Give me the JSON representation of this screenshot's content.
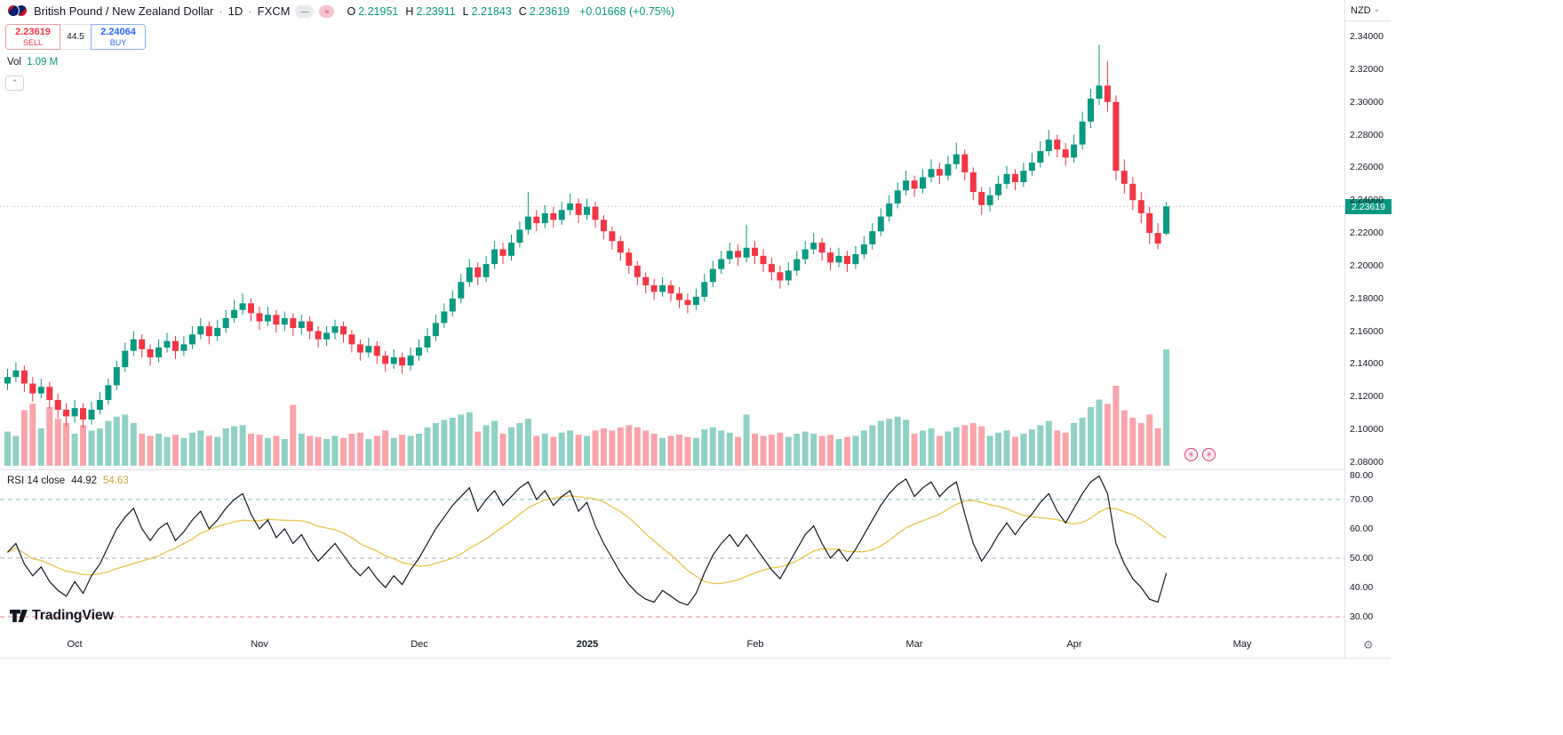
{
  "colors": {
    "up": "#089981",
    "down": "#f23645",
    "rsi": "#131722",
    "rsi_ma": "#e7c54a",
    "buy": "#2962ff",
    "sell": "#f23645",
    "last_price_badge_bg": "#089981"
  },
  "icons": {
    "chevron_up": "⌃",
    "chevron_down": "⌄",
    "gear": "⚙",
    "marker": "✳"
  },
  "legend": {
    "symbol_title": "British Pound / New Zealand Dollar",
    "separator": "·",
    "interval": "1D",
    "exchange": "FXCM",
    "badges": {
      "dash": "—",
      "wave": "≈"
    },
    "ohlc": {
      "o_label": "O",
      "o": "2.21951",
      "h_label": "H",
      "h": "2.23911",
      "l_label": "L",
      "l": "2.21843",
      "c_label": "C",
      "c": "2.23619",
      "change": "+0.01668 (+0.75%)"
    },
    "volume_label": "Vol",
    "volume_value": "1.09 M"
  },
  "order_panel": {
    "sell_price": "2.23619",
    "sell_label": "SELL",
    "spread": "44.5",
    "buy_price": "2.24064",
    "buy_label": "BUY"
  },
  "rsi_legend": {
    "title": "RSI 14 close",
    "value": "44.92",
    "ma_value": "54.63"
  },
  "price_axis": {
    "currency": "NZD",
    "last_price": "2.23619",
    "ticks": [
      "2.34000",
      "2.32000",
      "2.30000",
      "2.28000",
      "2.26000",
      "2.24000",
      "2.22000",
      "2.20000",
      "2.18000",
      "2.16000",
      "2.14000",
      "2.12000",
      "2.10000",
      "2.08000"
    ]
  },
  "rsi_axis": {
    "ticks": [
      "80.00",
      "70.00",
      "60.00",
      "50.00",
      "40.00",
      "30.00"
    ]
  },
  "time_axis": {
    "labels": [
      {
        "text": "Oct",
        "i": 8
      },
      {
        "text": "Nov",
        "i": 30
      },
      {
        "text": "Dec",
        "i": 49
      },
      {
        "text": "2025",
        "i": 69,
        "bold": true
      },
      {
        "text": "Feb",
        "i": 89
      },
      {
        "text": "Mar",
        "i": 108
      },
      {
        "text": "Apr",
        "i": 127
      },
      {
        "text": "May",
        "i": 147
      }
    ]
  },
  "branding": {
    "logo_text": "TradingView"
  },
  "chart_data": {
    "type": "candlestick",
    "title": "British Pound / New Zealand Dollar, 1D, FXCM",
    "price_axis_range": [
      2.08,
      2.345
    ],
    "rsi_axis_range": [
      25,
      85
    ],
    "last_price": 2.23619,
    "volume_unit": "millions",
    "indicators": [
      {
        "name": "RSI",
        "length": 14,
        "source": "close",
        "value": 44.92,
        "ma_value": 54.63
      }
    ],
    "rsi_levels": [
      {
        "value": 70,
        "color": "#26a69a"
      },
      {
        "value": 50,
        "color": "#787b86"
      },
      {
        "value": 30,
        "color": "#f23645"
      }
    ],
    "candle_format": [
      "open",
      "high",
      "low",
      "close",
      "volume_millions",
      "rsi_14"
    ],
    "candles": [
      [
        2.128,
        2.137,
        2.124,
        2.132,
        0.32,
        52
      ],
      [
        2.132,
        2.141,
        2.129,
        2.136,
        0.28,
        55
      ],
      [
        2.136,
        2.139,
        2.123,
        2.128,
        0.52,
        48
      ],
      [
        2.128,
        2.132,
        2.117,
        2.122,
        0.58,
        44
      ],
      [
        2.122,
        2.131,
        2.119,
        2.126,
        0.35,
        47
      ],
      [
        2.126,
        2.129,
        2.113,
        2.118,
        0.55,
        42
      ],
      [
        2.118,
        2.122,
        2.107,
        2.112,
        0.44,
        39
      ],
      [
        2.112,
        2.116,
        2.102,
        2.108,
        0.4,
        37
      ],
      [
        2.108,
        2.118,
        2.104,
        2.113,
        0.3,
        42
      ],
      [
        2.113,
        2.116,
        2.101,
        2.106,
        0.38,
        38
      ],
      [
        2.106,
        2.117,
        2.103,
        2.112,
        0.33,
        44
      ],
      [
        2.112,
        2.123,
        2.109,
        2.118,
        0.35,
        48
      ],
      [
        2.118,
        2.131,
        2.115,
        2.127,
        0.42,
        54
      ],
      [
        2.127,
        2.142,
        2.124,
        2.138,
        0.46,
        60
      ],
      [
        2.138,
        2.153,
        2.135,
        2.148,
        0.48,
        64
      ],
      [
        2.148,
        2.16,
        2.145,
        2.155,
        0.4,
        67
      ],
      [
        2.155,
        2.158,
        2.144,
        2.149,
        0.3,
        60
      ],
      [
        2.149,
        2.152,
        2.139,
        2.144,
        0.28,
        56
      ],
      [
        2.144,
        2.155,
        2.141,
        2.15,
        0.3,
        60
      ],
      [
        2.15,
        2.159,
        2.147,
        2.154,
        0.27,
        62
      ],
      [
        2.154,
        2.157,
        2.143,
        2.148,
        0.29,
        56
      ],
      [
        2.148,
        2.157,
        2.145,
        2.152,
        0.26,
        59
      ],
      [
        2.152,
        2.163,
        2.149,
        2.158,
        0.31,
        63
      ],
      [
        2.158,
        2.168,
        2.155,
        2.163,
        0.33,
        66
      ],
      [
        2.163,
        2.166,
        2.152,
        2.157,
        0.28,
        60
      ],
      [
        2.157,
        2.167,
        2.154,
        2.162,
        0.27,
        63
      ],
      [
        2.162,
        2.173,
        2.159,
        2.168,
        0.35,
        67
      ],
      [
        2.168,
        2.179,
        2.165,
        2.173,
        0.37,
        70
      ],
      [
        2.173,
        2.183,
        2.17,
        2.177,
        0.38,
        72
      ],
      [
        2.177,
        2.18,
        2.166,
        2.171,
        0.3,
        65
      ],
      [
        2.171,
        2.175,
        2.161,
        2.166,
        0.29,
        60
      ],
      [
        2.166,
        2.175,
        2.163,
        2.17,
        0.26,
        63
      ],
      [
        2.17,
        2.173,
        2.159,
        2.164,
        0.28,
        57
      ],
      [
        2.164,
        2.172,
        2.16,
        2.168,
        0.25,
        60
      ],
      [
        2.168,
        2.171,
        2.157,
        2.162,
        0.57,
        55
      ],
      [
        2.162,
        2.17,
        2.158,
        2.166,
        0.3,
        58
      ],
      [
        2.166,
        2.169,
        2.155,
        2.16,
        0.28,
        53
      ],
      [
        2.16,
        2.163,
        2.15,
        2.155,
        0.27,
        49
      ],
      [
        2.155,
        2.163,
        2.151,
        2.159,
        0.25,
        52
      ],
      [
        2.159,
        2.167,
        2.155,
        2.163,
        0.28,
        55
      ],
      [
        2.163,
        2.166,
        2.153,
        2.158,
        0.26,
        51
      ],
      [
        2.158,
        2.161,
        2.147,
        2.152,
        0.3,
        47
      ],
      [
        2.152,
        2.155,
        2.142,
        2.147,
        0.31,
        44
      ],
      [
        2.147,
        2.156,
        2.144,
        2.151,
        0.25,
        47
      ],
      [
        2.151,
        2.154,
        2.14,
        2.145,
        0.28,
        43
      ],
      [
        2.145,
        2.148,
        2.135,
        2.14,
        0.33,
        40
      ],
      [
        2.14,
        2.149,
        2.137,
        2.144,
        0.26,
        44
      ],
      [
        2.144,
        2.147,
        2.134,
        2.139,
        0.29,
        41
      ],
      [
        2.139,
        2.15,
        2.136,
        2.145,
        0.28,
        46
      ],
      [
        2.145,
        2.155,
        2.142,
        2.15,
        0.3,
        50
      ],
      [
        2.15,
        2.162,
        2.147,
        2.157,
        0.36,
        55
      ],
      [
        2.157,
        2.17,
        2.154,
        2.165,
        0.4,
        60
      ],
      [
        2.165,
        2.177,
        2.162,
        2.172,
        0.43,
        64
      ],
      [
        2.172,
        2.185,
        2.169,
        2.18,
        0.45,
        68
      ],
      [
        2.18,
        2.195,
        2.177,
        2.19,
        0.48,
        71
      ],
      [
        2.19,
        2.204,
        2.187,
        2.199,
        0.5,
        74
      ],
      [
        2.199,
        2.202,
        2.188,
        2.193,
        0.32,
        66
      ],
      [
        2.193,
        2.206,
        2.19,
        2.201,
        0.38,
        70
      ],
      [
        2.201,
        2.215,
        2.198,
        2.21,
        0.42,
        73
      ],
      [
        2.21,
        2.214,
        2.201,
        2.206,
        0.3,
        68
      ],
      [
        2.206,
        2.219,
        2.203,
        2.214,
        0.36,
        71
      ],
      [
        2.214,
        2.227,
        2.211,
        2.222,
        0.4,
        74
      ],
      [
        2.222,
        2.245,
        2.219,
        2.23,
        0.44,
        76
      ],
      [
        2.23,
        2.234,
        2.221,
        2.226,
        0.28,
        70
      ],
      [
        2.226,
        2.237,
        2.223,
        2.232,
        0.3,
        73
      ],
      [
        2.232,
        2.236,
        2.223,
        2.228,
        0.27,
        68
      ],
      [
        2.228,
        2.239,
        2.225,
        2.234,
        0.31,
        71
      ],
      [
        2.234,
        2.244,
        2.231,
        2.238,
        0.33,
        73
      ],
      [
        2.238,
        2.241,
        2.226,
        2.231,
        0.29,
        66
      ],
      [
        2.231,
        2.241,
        2.228,
        2.236,
        0.28,
        69
      ],
      [
        2.236,
        2.239,
        2.223,
        2.228,
        0.33,
        61
      ],
      [
        2.228,
        2.231,
        2.216,
        2.221,
        0.35,
        55
      ],
      [
        2.221,
        2.224,
        2.21,
        2.215,
        0.33,
        50
      ],
      [
        2.215,
        2.218,
        2.203,
        2.208,
        0.36,
        45
      ],
      [
        2.208,
        2.211,
        2.195,
        2.2,
        0.38,
        41
      ],
      [
        2.2,
        2.203,
        2.188,
        2.193,
        0.36,
        38
      ],
      [
        2.193,
        2.196,
        2.183,
        2.188,
        0.33,
        36
      ],
      [
        2.188,
        2.192,
        2.179,
        2.184,
        0.3,
        35
      ],
      [
        2.184,
        2.193,
        2.181,
        2.188,
        0.26,
        39
      ],
      [
        2.188,
        2.191,
        2.178,
        2.183,
        0.28,
        37
      ],
      [
        2.183,
        2.187,
        2.174,
        2.179,
        0.29,
        35
      ],
      [
        2.179,
        2.183,
        2.171,
        2.176,
        0.27,
        34
      ],
      [
        2.176,
        2.186,
        2.173,
        2.181,
        0.26,
        38
      ],
      [
        2.181,
        2.195,
        2.178,
        2.19,
        0.34,
        45
      ],
      [
        2.19,
        2.203,
        2.187,
        2.198,
        0.36,
        51
      ],
      [
        2.198,
        2.209,
        2.195,
        2.204,
        0.33,
        55
      ],
      [
        2.204,
        2.214,
        2.201,
        2.209,
        0.31,
        58
      ],
      [
        2.209,
        2.213,
        2.2,
        2.205,
        0.27,
        54
      ],
      [
        2.205,
        2.225,
        2.202,
        2.211,
        0.48,
        58
      ],
      [
        2.211,
        2.215,
        2.201,
        2.206,
        0.3,
        54
      ],
      [
        2.206,
        2.21,
        2.196,
        2.201,
        0.28,
        50
      ],
      [
        2.201,
        2.205,
        2.191,
        2.196,
        0.29,
        46
      ],
      [
        2.196,
        2.2,
        2.186,
        2.191,
        0.31,
        43
      ],
      [
        2.191,
        2.202,
        2.188,
        2.197,
        0.27,
        48
      ],
      [
        2.197,
        2.209,
        2.194,
        2.204,
        0.3,
        53
      ],
      [
        2.204,
        2.215,
        2.201,
        2.21,
        0.32,
        58
      ],
      [
        2.21,
        2.22,
        2.207,
        2.214,
        0.3,
        61
      ],
      [
        2.214,
        2.217,
        2.203,
        2.208,
        0.28,
        55
      ],
      [
        2.208,
        2.211,
        2.197,
        2.202,
        0.29,
        50
      ],
      [
        2.202,
        2.211,
        2.199,
        2.206,
        0.25,
        53
      ],
      [
        2.206,
        2.209,
        2.196,
        2.201,
        0.27,
        49
      ],
      [
        2.201,
        2.212,
        2.198,
        2.207,
        0.28,
        53
      ],
      [
        2.207,
        2.218,
        2.204,
        2.213,
        0.33,
        58
      ],
      [
        2.213,
        2.226,
        2.21,
        2.221,
        0.38,
        63
      ],
      [
        2.221,
        2.235,
        2.218,
        2.23,
        0.42,
        68
      ],
      [
        2.23,
        2.243,
        2.227,
        2.238,
        0.44,
        72
      ],
      [
        2.238,
        2.251,
        2.235,
        2.246,
        0.46,
        75
      ],
      [
        2.246,
        2.258,
        2.243,
        2.252,
        0.43,
        77
      ],
      [
        2.252,
        2.255,
        2.242,
        2.247,
        0.3,
        71
      ],
      [
        2.247,
        2.259,
        2.244,
        2.254,
        0.33,
        74
      ],
      [
        2.254,
        2.265,
        2.251,
        2.259,
        0.35,
        76
      ],
      [
        2.259,
        2.263,
        2.25,
        2.255,
        0.28,
        71
      ],
      [
        2.255,
        2.267,
        2.252,
        2.262,
        0.32,
        74
      ],
      [
        2.262,
        2.275,
        2.259,
        2.268,
        0.36,
        76
      ],
      [
        2.268,
        2.271,
        2.252,
        2.257,
        0.38,
        65
      ],
      [
        2.257,
        2.26,
        2.24,
        2.245,
        0.4,
        55
      ],
      [
        2.245,
        2.248,
        2.231,
        2.237,
        0.37,
        49
      ],
      [
        2.237,
        2.248,
        2.233,
        2.243,
        0.28,
        53
      ],
      [
        2.243,
        2.255,
        2.24,
        2.25,
        0.31,
        58
      ],
      [
        2.25,
        2.261,
        2.247,
        2.256,
        0.33,
        62
      ],
      [
        2.256,
        2.259,
        2.246,
        2.251,
        0.27,
        58
      ],
      [
        2.251,
        2.263,
        2.248,
        2.258,
        0.3,
        62
      ],
      [
        2.258,
        2.269,
        2.255,
        2.263,
        0.34,
        65
      ],
      [
        2.263,
        2.276,
        2.26,
        2.27,
        0.38,
        69
      ],
      [
        2.27,
        2.283,
        2.267,
        2.277,
        0.42,
        72
      ],
      [
        2.277,
        2.28,
        2.266,
        2.271,
        0.33,
        66
      ],
      [
        2.271,
        2.275,
        2.261,
        2.266,
        0.31,
        62
      ],
      [
        2.266,
        2.28,
        2.263,
        2.274,
        0.4,
        67
      ],
      [
        2.274,
        2.294,
        2.271,
        2.288,
        0.45,
        72
      ],
      [
        2.288,
        2.308,
        2.284,
        2.302,
        0.55,
        76
      ],
      [
        2.302,
        2.335,
        2.298,
        2.31,
        0.62,
        78
      ],
      [
        2.31,
        2.325,
        2.294,
        2.3,
        0.58,
        72
      ],
      [
        2.3,
        2.304,
        2.252,
        2.258,
        0.75,
        55
      ],
      [
        2.258,
        2.265,
        2.244,
        2.25,
        0.52,
        48
      ],
      [
        2.25,
        2.254,
        2.234,
        2.24,
        0.45,
        43
      ],
      [
        2.24,
        2.245,
        2.226,
        2.232,
        0.4,
        40
      ],
      [
        2.232,
        2.236,
        2.213,
        2.22,
        0.48,
        36
      ],
      [
        2.22,
        2.226,
        2.21,
        2.2135,
        0.35,
        35
      ],
      [
        2.21951,
        2.23911,
        2.21843,
        2.23619,
        1.09,
        44.92
      ]
    ]
  }
}
